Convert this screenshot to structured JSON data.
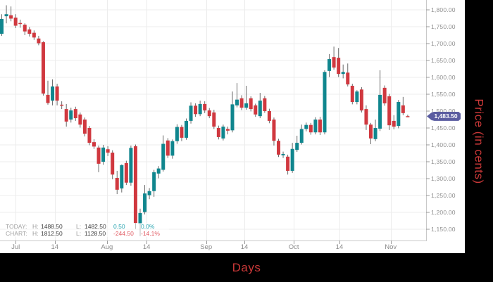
{
  "axis_titles": {
    "x": "Days",
    "y": "Price (in cents)"
  },
  "status": {
    "rows": [
      {
        "label": "TODAY:",
        "h_label": "H:",
        "h_value": "1488.50",
        "l_label": "L:",
        "l_value": "1482.50",
        "change": "0.50",
        "pct": "0.0%",
        "dir": "up"
      },
      {
        "label": "CHART:",
        "h_label": "H:",
        "h_value": "1812.50",
        "l_label": "L:",
        "l_value": "1128.50",
        "change": "-244.50",
        "pct": "-14.1%",
        "dir": "down"
      }
    ]
  },
  "current_price": {
    "label": "1,483.50",
    "value": 1483.5
  },
  "colors": {
    "up": "#10868e",
    "down": "#d0383f",
    "wick": "#6a6a6a",
    "grid": "#ececec",
    "border": "#c8c8c8",
    "tick": "#9a9a9a",
    "axis_title": "#c93838",
    "price_tag": "#5a5ca0",
    "background": "#ffffff",
    "outer": "#000000"
  },
  "chart_data": {
    "type": "candlestick",
    "title": "",
    "xlabel": "Days",
    "ylabel": "Price (in cents)",
    "grid": true,
    "legend": false,
    "ylim": [
      1113,
      1828
    ],
    "y_ticks": [
      {
        "v": 1800,
        "label": "1,800.00"
      },
      {
        "v": 1750,
        "label": "1,750.00"
      },
      {
        "v": 1700,
        "label": "1,700.00"
      },
      {
        "v": 1650,
        "label": "1,650.00"
      },
      {
        "v": 1600,
        "label": "1,600.00"
      },
      {
        "v": 1550,
        "label": "1,550.00"
      },
      {
        "v": 1500,
        "label": "1,500.00"
      },
      {
        "v": 1450,
        "label": "1,450.00"
      },
      {
        "v": 1400,
        "label": "1,400.00"
      },
      {
        "v": 1350,
        "label": "1,350.00"
      },
      {
        "v": 1300,
        "label": "1,300.00"
      },
      {
        "v": 1250,
        "label": "1,250.00"
      },
      {
        "v": 1200,
        "label": "1,200.00"
      },
      {
        "v": 1150,
        "label": "1,150.00"
      }
    ],
    "x_ticks": [
      {
        "i": 3.0,
        "label": "Jul"
      },
      {
        "i": 11.5,
        "label": "14"
      },
      {
        "i": 22.8,
        "label": "Aug"
      },
      {
        "i": 31.4,
        "label": "14"
      },
      {
        "i": 44.3,
        "label": "Sep"
      },
      {
        "i": 52.6,
        "label": "14"
      },
      {
        "i": 63.3,
        "label": "Oct"
      },
      {
        "i": 73.2,
        "label": "14"
      },
      {
        "i": 84.3,
        "label": "Nov"
      }
    ],
    "ohlc_note": "array items are [open, high, low, close] in cents, one per trading day Jul-Nov",
    "candles": [
      [
        1728,
        1786,
        1722,
        1772
      ],
      [
        1780,
        1812.5,
        1759,
        1786
      ],
      [
        1783,
        1809,
        1765,
        1773
      ],
      [
        1776,
        1786,
        1745,
        1752
      ],
      [
        1760,
        1770,
        1746,
        1757
      ],
      [
        1755,
        1759,
        1724,
        1735
      ],
      [
        1741,
        1748,
        1720,
        1728
      ],
      [
        1731,
        1738,
        1710,
        1717
      ],
      [
        1714,
        1722,
        1694,
        1700
      ],
      [
        1703,
        1706,
        1545,
        1551
      ],
      [
        1547,
        1589,
        1518,
        1523
      ],
      [
        1530,
        1593,
        1516,
        1572
      ],
      [
        1572,
        1580,
        1516,
        1530
      ],
      [
        1518,
        1528,
        1505,
        1516
      ],
      [
        1505,
        1520,
        1453,
        1468
      ],
      [
        1474,
        1509,
        1465,
        1501
      ],
      [
        1505,
        1512,
        1470,
        1478
      ],
      [
        1489,
        1495,
        1450,
        1459
      ],
      [
        1474,
        1480,
        1424,
        1432
      ],
      [
        1449,
        1455,
        1398,
        1405
      ],
      [
        1407,
        1416,
        1387,
        1394
      ],
      [
        1391,
        1397,
        1318,
        1343
      ],
      [
        1349,
        1399,
        1340,
        1391
      ],
      [
        1386,
        1395,
        1366,
        1376
      ],
      [
        1376,
        1383,
        1297,
        1311
      ],
      [
        1301,
        1322,
        1253,
        1266
      ],
      [
        1270,
        1341,
        1258,
        1339
      ],
      [
        1345,
        1352,
        1280,
        1287
      ],
      [
        1287,
        1397,
        1278,
        1390
      ],
      [
        1395,
        1400,
        1150,
        1167
      ],
      [
        1165,
        1210,
        1128.5,
        1197
      ],
      [
        1200,
        1280,
        1193,
        1255
      ],
      [
        1250,
        1271,
        1238,
        1262
      ],
      [
        1262,
        1325,
        1245,
        1318
      ],
      [
        1314,
        1336,
        1300,
        1329
      ],
      [
        1325,
        1427,
        1320,
        1402
      ],
      [
        1412,
        1419,
        1360,
        1367
      ],
      [
        1367,
        1415,
        1358,
        1410
      ],
      [
        1410,
        1460,
        1402,
        1452
      ],
      [
        1452,
        1458,
        1410,
        1420
      ],
      [
        1420,
        1477,
        1414,
        1470
      ],
      [
        1470,
        1525,
        1462,
        1515
      ],
      [
        1515,
        1522,
        1482,
        1490
      ],
      [
        1490,
        1530,
        1484,
        1520
      ],
      [
        1520,
        1528,
        1493,
        1501
      ],
      [
        1501,
        1508,
        1478,
        1484
      ],
      [
        1495,
        1503,
        1446,
        1453
      ],
      [
        1449,
        1456,
        1415,
        1422
      ],
      [
        1418,
        1459,
        1412,
        1453
      ],
      [
        1446,
        1453,
        1430,
        1441
      ],
      [
        1442,
        1557,
        1436,
        1519
      ],
      [
        1516,
        1582,
        1510,
        1533
      ],
      [
        1537,
        1546,
        1502,
        1509
      ],
      [
        1509,
        1574,
        1503,
        1522
      ],
      [
        1537,
        1543,
        1498,
        1505
      ],
      [
        1516,
        1521,
        1482,
        1489
      ],
      [
        1484,
        1553,
        1478,
        1530
      ],
      [
        1537,
        1544,
        1494,
        1499
      ],
      [
        1499,
        1506,
        1463,
        1470
      ],
      [
        1474,
        1480,
        1397,
        1411
      ],
      [
        1411,
        1417,
        1363,
        1370
      ],
      [
        1368,
        1379,
        1360,
        1372
      ],
      [
        1364,
        1370,
        1311,
        1322
      ],
      [
        1322,
        1405,
        1316,
        1387
      ],
      [
        1384,
        1426,
        1378,
        1405
      ],
      [
        1405,
        1459,
        1400,
        1446
      ],
      [
        1446,
        1465,
        1439,
        1458
      ],
      [
        1458,
        1464,
        1429,
        1436
      ],
      [
        1436,
        1481,
        1430,
        1474
      ],
      [
        1474,
        1482,
        1428,
        1436
      ],
      [
        1436,
        1620,
        1430,
        1615
      ],
      [
        1618,
        1668,
        1600,
        1653
      ],
      [
        1659,
        1690,
        1622,
        1628
      ],
      [
        1657,
        1686,
        1600,
        1609
      ],
      [
        1609,
        1637,
        1596,
        1615
      ],
      [
        1613,
        1640,
        1572,
        1578
      ],
      [
        1574,
        1580,
        1519,
        1526
      ],
      [
        1526,
        1561,
        1519,
        1557
      ],
      [
        1563,
        1570,
        1495,
        1501
      ],
      [
        1505,
        1516,
        1443,
        1459
      ],
      [
        1459,
        1464,
        1401,
        1418
      ],
      [
        1416,
        1474,
        1410,
        1449
      ],
      [
        1447,
        1620,
        1440,
        1547
      ],
      [
        1568,
        1575,
        1515,
        1522
      ],
      [
        1543,
        1550,
        1443,
        1457
      ],
      [
        1470,
        1487,
        1445,
        1453
      ],
      [
        1455,
        1532,
        1448,
        1526
      ],
      [
        1516,
        1541,
        1487,
        1493
      ],
      [
        1484,
        1488.5,
        1482.5,
        1483.5
      ]
    ]
  }
}
